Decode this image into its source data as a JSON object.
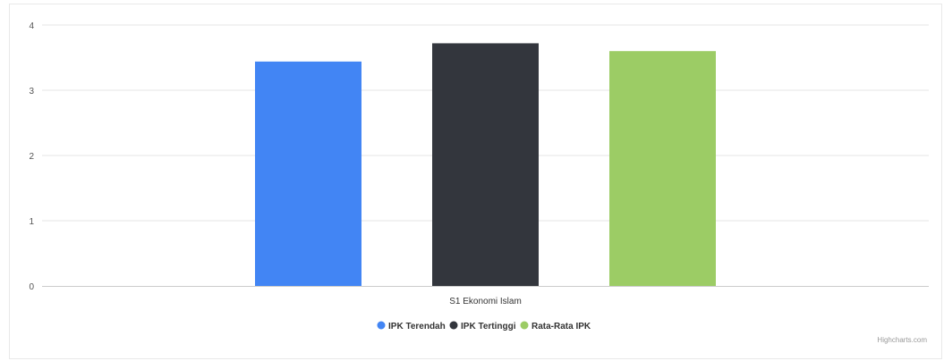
{
  "chart_data": {
    "type": "bar",
    "categories": [
      "S1 Ekonomi Islam"
    ],
    "series": [
      {
        "name": "IPK Terendah",
        "values": [
          3.44
        ],
        "color": "#4285f4"
      },
      {
        "name": "IPK Tertinggi",
        "values": [
          3.72
        ],
        "color": "#33363d"
      },
      {
        "name": "Rata-Rata IPK",
        "values": [
          3.6
        ],
        "color": "#9ccc65"
      }
    ],
    "yticks": [
      0,
      1,
      2,
      3,
      4
    ],
    "ylim": [
      0,
      4
    ],
    "grid": true,
    "legend_position": "bottom-center",
    "credits": "Highcharts.com"
  }
}
